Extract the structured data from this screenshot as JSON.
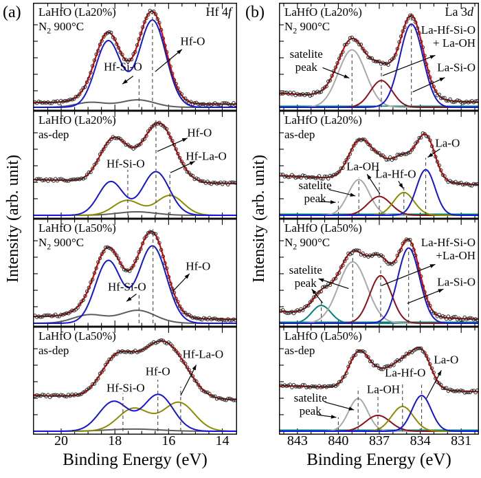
{
  "figure": {
    "letter_a": "(a)",
    "letter_b": "(b)",
    "xlabel": "Binding Energy (eV)",
    "ylabel": "Intensity (arb. unit)"
  },
  "colors": {
    "fit": "#e60000",
    "blue": "#1313dd",
    "olive": "#8b8b00",
    "gray_dark": "#5c5c5c",
    "gray_light": "#a8a8a8",
    "wine": "#8b0f14",
    "teal": "#00827a",
    "data": "#2b2b2b",
    "dash": "#444444",
    "axis": "#000000",
    "text": "#000000"
  },
  "axes": {
    "a": {
      "range": [
        21.05,
        13.45
      ],
      "major_ticks": [
        20,
        18,
        16,
        14
      ],
      "tick_labels": [
        "20",
        "18",
        "16",
        "14"
      ],
      "minor_step": 0.5
    },
    "b": {
      "range": [
        844.35,
        829.7
      ],
      "major_ticks": [
        843,
        840,
        837,
        834,
        831
      ],
      "tick_labels": [
        "843",
        "840",
        "837",
        "834",
        "831"
      ],
      "minor_step": 1
    }
  },
  "chart_data": [
    {
      "id": "a1",
      "type": "line",
      "axis": "a",
      "row": 0,
      "title_lines": [
        "LaHfO (La20%)",
        "N₂ 900°C"
      ],
      "corner": {
        "main": "Hf 4",
        "italic": "f"
      },
      "background": {
        "left": 0.05,
        "right": 0.03
      },
      "noise": 0.013,
      "components": [
        {
          "name": "Hf-Si-O",
          "color": "gray_dark",
          "peaks": [
            {
              "c": 18.9,
              "s": 0.55,
              "a": 0.05
            },
            {
              "c": 17.15,
              "s": 0.62,
              "a": 0.075
            }
          ]
        },
        {
          "name": "Hf-O",
          "color": "blue",
          "peaks": [
            {
              "c": 18.25,
              "s": 0.47,
              "a": 0.67
            },
            {
              "c": 16.6,
              "s": 0.5,
              "a": 0.88
            }
          ]
        }
      ],
      "dashed": [
        {
          "x": 17.1,
          "top": 0.3
        },
        {
          "x": 16.6,
          "top": 0.95
        }
      ],
      "annotations": [
        {
          "lines": [
            "Hf-Si-O"
          ],
          "x": 17.7,
          "y": 0.41,
          "align": "center",
          "arrows": [
            {
              "x1": 17.32,
              "y1": 0.315,
              "x2": 17.72,
              "y2": 0.235
            }
          ]
        },
        {
          "lines": [
            "Hf-O"
          ],
          "x": 15.1,
          "y": 0.67,
          "align": "center",
          "arrows": [
            {
              "x1": 16.5,
              "y1": 0.36,
              "x2": 15.5,
              "y2": 0.585
            }
          ]
        }
      ]
    },
    {
      "id": "a2",
      "type": "line",
      "axis": "a",
      "row": 1,
      "title_lines": [
        "LaHfO (La20%)",
        "as-dep"
      ],
      "corner": null,
      "background": {
        "left": 0.36,
        "right": 0.32
      },
      "noise": 0.013,
      "components": [
        {
          "name": "Hf-Si-O",
          "color": "gray_dark",
          "peaks": [
            {
              "c": 17.2,
              "s": 0.7,
              "a": 0.035
            }
          ]
        },
        {
          "name": "Hf-La-O",
          "color": "olive",
          "peaks": [
            {
              "c": 17.55,
              "s": 0.5,
              "a": 0.15
            },
            {
              "c": 15.95,
              "s": 0.5,
              "a": 0.2
            }
          ]
        },
        {
          "name": "Hf-O",
          "color": "blue",
          "peaks": [
            {
              "c": 18.15,
              "s": 0.46,
              "a": 0.34
            },
            {
              "c": 16.47,
              "s": 0.5,
              "a": 0.44
            }
          ]
        }
      ],
      "dashed": [
        {
          "x": 17.52,
          "top": 0.46
        },
        {
          "x": 16.47,
          "top": 0.96
        },
        {
          "x": 15.95,
          "top": 0.44
        }
      ],
      "annotations": [
        {
          "lines": [
            "Hf-Si-O"
          ],
          "x": 17.6,
          "y": 0.52,
          "align": "center",
          "arrows": []
        },
        {
          "lines": [
            "Hf-O"
          ],
          "x": 14.85,
          "y": 0.835,
          "align": "center",
          "arrows": [
            {
              "x1": 16.42,
              "y1": 0.645,
              "x2": 15.3,
              "y2": 0.78
            }
          ]
        },
        {
          "lines": [
            "Hf-La-O"
          ],
          "x": 14.6,
          "y": 0.595,
          "align": "center",
          "arrows": [
            {
              "x1": 15.93,
              "y1": 0.43,
              "x2": 15.02,
              "y2": 0.545
            }
          ]
        }
      ]
    },
    {
      "id": "a3",
      "type": "line",
      "axis": "a",
      "row": 2,
      "title_lines": [
        "LaHfO (La50%)",
        "N₂ 900°C"
      ],
      "corner": null,
      "background": {
        "left": 0.07,
        "right": 0.04
      },
      "noise": 0.013,
      "components": [
        {
          "name": "Hf-Si-O",
          "color": "gray_dark",
          "peaks": [
            {
              "c": 18.95,
              "s": 0.6,
              "a": 0.085
            },
            {
              "c": 17.15,
              "s": 0.65,
              "a": 0.13
            }
          ]
        },
        {
          "name": "Hf-O",
          "color": "blue",
          "peaks": [
            {
              "c": 18.25,
              "s": 0.48,
              "a": 0.63
            },
            {
              "c": 16.6,
              "s": 0.52,
              "a": 0.78
            }
          ]
        }
      ],
      "dashed": [
        {
          "x": 17.1,
          "top": 0.29
        },
        {
          "x": 16.58,
          "top": 0.95
        }
      ],
      "annotations": [
        {
          "lines": [
            "Hf-Si-O"
          ],
          "x": 17.55,
          "y": 0.37,
          "align": "center",
          "arrows": [
            {
              "x1": 17.2,
              "y1": 0.295,
              "x2": 17.57,
              "y2": 0.22
            }
          ]
        },
        {
          "lines": [
            "Hf-O"
          ],
          "x": 14.9,
          "y": 0.575,
          "align": "center",
          "arrows": [
            {
              "x1": 15.85,
              "y1": 0.32,
              "x2": 15.22,
              "y2": 0.5
            }
          ]
        }
      ]
    },
    {
      "id": "a4",
      "type": "line",
      "axis": "a",
      "row": 3,
      "title_lines": [
        "LaHfO (La50%)",
        "as-dep"
      ],
      "corner": null,
      "background": {
        "left": 0.36,
        "right": 0.32
      },
      "noise": 0.013,
      "components": [
        {
          "name": "Hf-Si-O",
          "color": "gray_dark",
          "peaks": [
            {
              "c": 17.3,
              "s": 0.95,
              "a": 0.022
            }
          ]
        },
        {
          "name": "Hf-La-O",
          "color": "olive",
          "peaks": [
            {
              "c": 17.3,
              "s": 0.58,
              "a": 0.23
            },
            {
              "c": 15.62,
              "s": 0.58,
              "a": 0.29
            }
          ]
        },
        {
          "name": "Hf-O",
          "color": "blue",
          "peaks": [
            {
              "c": 18.05,
              "s": 0.54,
              "a": 0.3
            },
            {
              "c": 16.38,
              "s": 0.55,
              "a": 0.37
            }
          ]
        }
      ],
      "dashed": [
        {
          "x": 17.7,
          "top": 0.38
        },
        {
          "x": 16.4,
          "top": 0.52
        },
        {
          "x": 15.55,
          "top": 0.45
        }
      ],
      "annotations": [
        {
          "lines": [
            "Hf-Si-O"
          ],
          "x": 17.6,
          "y": 0.44,
          "align": "center",
          "arrows": []
        },
        {
          "lines": [
            "Hf-O"
          ],
          "x": 16.4,
          "y": 0.605,
          "align": "center",
          "arrows": []
        },
        {
          "lines": [
            "Hf-La-O"
          ],
          "x": 14.72,
          "y": 0.78,
          "align": "center",
          "arrows": [
            {
              "x1": 15.55,
              "y1": 0.36,
              "x2": 14.97,
              "y2": 0.67
            }
          ]
        }
      ]
    },
    {
      "id": "b1",
      "type": "line",
      "axis": "b",
      "row": 0,
      "title_lines": [
        "LaHfO (La20%)",
        "N₂ 900°C"
      ],
      "corner": {
        "main": "La 3",
        "italic": "d"
      },
      "background": {
        "left": 0.14,
        "right": 0.05
      },
      "noise": 0.017,
      "baseline": true,
      "components": [
        {
          "name": "satelite peak",
          "color": "gray_light",
          "peaks": [
            {
              "c": 839.0,
              "s": 1.0,
              "a": 0.58
            }
          ]
        },
        {
          "name": "La-Si-O",
          "color": "wine",
          "peaks": [
            {
              "c": 836.85,
              "s": 0.8,
              "a": 0.27
            }
          ]
        },
        {
          "name": "La-Hf-Si-O + La-OH",
          "color": "blue",
          "peaks": [
            {
              "c": 834.65,
              "s": 0.85,
              "a": 0.84
            }
          ]
        }
      ],
      "dashed": [
        {
          "x": 839.0,
          "top": 0.56
        },
        {
          "x": 836.85,
          "top": 0.42
        },
        {
          "x": 834.65,
          "top": 0.95
        }
      ],
      "annotations": [
        {
          "lines": [
            "satelite",
            "peak"
          ],
          "x": 842.35,
          "y": 0.475,
          "align": "center",
          "arrows": [
            {
              "x1": 841.15,
              "y1": 0.4,
              "x2": 839.2,
              "y2": 0.295
            }
          ]
        },
        {
          "lines": [
            "La-Hf-Si-O",
            "+ La-OH"
          ],
          "x": 829.95,
          "y": 0.715,
          "align": "right",
          "arrows": [
            {
              "x1": 836.75,
              "y1": 0.32,
              "x2": 832.9,
              "y2": 0.525
            }
          ]
        },
        {
          "lines": [
            "La-Si-O"
          ],
          "x": 829.95,
          "y": 0.4,
          "align": "right",
          "arrows": [
            {
              "x1": 834.55,
              "y1": 0.155,
              "x2": 832.2,
              "y2": 0.3
            }
          ]
        }
      ]
    },
    {
      "id": "b2",
      "type": "line",
      "axis": "b",
      "row": 1,
      "title_lines": [
        "LaHfO (La20%)",
        "as-dep"
      ],
      "corner": null,
      "background": {
        "left": 0.4,
        "right": 0.31
      },
      "noise": 0.016,
      "baseline": true,
      "components": [
        {
          "name": "satelite peak",
          "color": "gray_light",
          "peaks": [
            {
              "c": 838.5,
              "s": 0.78,
              "a": 0.36
            }
          ]
        },
        {
          "name": "La-OH",
          "color": "wine",
          "peaks": [
            {
              "c": 837.0,
              "s": 0.85,
              "a": 0.19
            }
          ]
        },
        {
          "name": "La-Hf-O",
          "color": "olive",
          "peaks": [
            {
              "c": 835.2,
              "s": 0.75,
              "a": 0.23
            }
          ]
        },
        {
          "name": "La-O",
          "color": "blue",
          "peaks": [
            {
              "c": 833.6,
              "s": 0.68,
              "a": 0.46
            }
          ]
        }
      ],
      "dashed": [
        {
          "x": 840.0,
          "top": 0.14
        },
        {
          "x": 838.5,
          "top": 0.38
        },
        {
          "x": 837.0,
          "top": 0.33
        },
        {
          "x": 835.2,
          "top": 0.3
        },
        {
          "x": 833.6,
          "top": 0.58
        }
      ],
      "annotations": [
        {
          "lines": [
            "satelite",
            "peak"
          ],
          "x": 841.7,
          "y": 0.235,
          "align": "center",
          "arrows": [
            {
              "x1": 840.7,
              "y1": 0.26,
              "x2": 838.75,
              "y2": 0.195
            },
            {
              "x1": 841.35,
              "y1": 0.14,
              "x2": 840.2,
              "y2": 0.13
            }
          ]
        },
        {
          "lines": [
            "La-OH"
          ],
          "x": 838.2,
          "y": 0.49,
          "align": "center",
          "arrows": [
            {
              "x1": 836.95,
              "y1": 0.215,
              "x2": 837.9,
              "y2": 0.415
            }
          ]
        },
        {
          "lines": [
            "La-Hf-O"
          ],
          "x": 835.8,
          "y": 0.415,
          "align": "center",
          "arrows": [
            {
              "x1": 835.6,
              "y1": 0.345,
              "x2": 835.25,
              "y2": 0.27
            }
          ]
        },
        {
          "lines": [
            "La-O"
          ],
          "x": 832.0,
          "y": 0.73,
          "align": "center",
          "arrows": [
            {
              "x1": 832.55,
              "y1": 0.67,
              "x2": 833.45,
              "y2": 0.585
            }
          ]
        }
      ]
    },
    {
      "id": "b3",
      "type": "line",
      "axis": "b",
      "row": 2,
      "title_lines": [
        "LaHfO (La50%)",
        "N₂ 900°C"
      ],
      "corner": null,
      "background": {
        "left": 0.12,
        "right": 0.04
      },
      "noise": 0.017,
      "baseline": true,
      "components": [
        {
          "name": "satelite peak 2",
          "color": "teal",
          "peaks": [
            {
              "c": 841.25,
              "s": 0.7,
              "a": 0.18
            }
          ]
        },
        {
          "name": "satelite peak",
          "color": "gray_light",
          "peaks": [
            {
              "c": 838.95,
              "s": 1.05,
              "a": 0.62
            }
          ]
        },
        {
          "name": "La-Si-O",
          "color": "wine",
          "peaks": [
            {
              "c": 836.9,
              "s": 0.8,
              "a": 0.48
            }
          ]
        },
        {
          "name": "La-Hf-Si-O + La-OH",
          "color": "blue",
          "peaks": [
            {
              "c": 834.85,
              "s": 0.8,
              "a": 0.76
            }
          ]
        }
      ],
      "dashed": [
        {
          "x": 841.25,
          "top": 0.23
        },
        {
          "x": 838.95,
          "top": 0.7
        },
        {
          "x": 836.9,
          "top": 0.58
        },
        {
          "x": 834.85,
          "top": 0.74
        }
      ],
      "annotations": [
        {
          "lines": [
            "satelite",
            "peak"
          ],
          "x": 842.4,
          "y": 0.475,
          "align": "center",
          "arrows": [
            {
              "x1": 839.25,
              "y1": 0.35,
              "x2": 841.45,
              "y2": 0.45
            },
            {
              "x1": 841.15,
              "y1": 0.205,
              "x2": 841.95,
              "y2": 0.345
            }
          ]
        },
        {
          "lines": [
            "La-Hf-Si-O",
            "+La-OH"
          ],
          "x": 829.95,
          "y": 0.75,
          "align": "right",
          "arrows": [
            {
              "x1": 836.85,
              "y1": 0.38,
              "x2": 832.9,
              "y2": 0.595
            }
          ]
        },
        {
          "lines": [
            "La-Si-O"
          ],
          "x": 829.95,
          "y": 0.415,
          "align": "right",
          "arrows": [
            {
              "x1": 834.95,
              "y1": 0.2,
              "x2": 832.3,
              "y2": 0.345
            }
          ]
        }
      ]
    },
    {
      "id": "b4",
      "type": "line",
      "axis": "b",
      "row": 3,
      "title_lines": [
        "LaHfO (La50%)",
        "as-dep"
      ],
      "corner": null,
      "background": {
        "left": 0.46,
        "right": 0.4
      },
      "noise": 0.016,
      "baseline": true,
      "components": [
        {
          "name": "satelite peak",
          "color": "gray_light",
          "peaks": [
            {
              "c": 838.55,
              "s": 0.7,
              "a": 0.33
            }
          ]
        },
        {
          "name": "La-OH",
          "color": "wine",
          "peaks": [
            {
              "c": 837.1,
              "s": 0.9,
              "a": 0.16
            }
          ]
        },
        {
          "name": "La-Hf-O",
          "color": "olive",
          "peaks": [
            {
              "c": 835.3,
              "s": 0.8,
              "a": 0.25
            }
          ]
        },
        {
          "name": "La-O",
          "color": "blue",
          "peaks": [
            {
              "c": 833.9,
              "s": 0.7,
              "a": 0.36
            }
          ]
        }
      ],
      "dashed": [
        {
          "x": 840.0,
          "top": 0.14
        },
        {
          "x": 838.55,
          "top": 0.44
        },
        {
          "x": 837.1,
          "top": 0.4
        },
        {
          "x": 835.3,
          "top": 0.5
        },
        {
          "x": 833.9,
          "top": 0.47
        }
      ],
      "annotations": [
        {
          "lines": [
            "satelite",
            "peak"
          ],
          "x": 842.05,
          "y": 0.27,
          "align": "center",
          "arrows": [
            {
              "x1": 841.0,
              "y1": 0.295,
              "x2": 838.85,
              "y2": 0.215
            },
            {
              "x1": 841.55,
              "y1": 0.165,
              "x2": 840.15,
              "y2": 0.14
            }
          ]
        },
        {
          "lines": [
            "La-OH"
          ],
          "x": 836.7,
          "y": 0.425,
          "align": "center",
          "arrows": []
        },
        {
          "lines": [
            "La-Hf-O"
          ],
          "x": 835.1,
          "y": 0.59,
          "align": "center",
          "arrows": []
        },
        {
          "lines": [
            "La-O"
          ],
          "x": 832.1,
          "y": 0.72,
          "align": "center",
          "arrows": [
            {
              "x1": 833.55,
              "y1": 0.33,
              "x2": 832.45,
              "y2": 0.615
            }
          ]
        }
      ]
    }
  ]
}
